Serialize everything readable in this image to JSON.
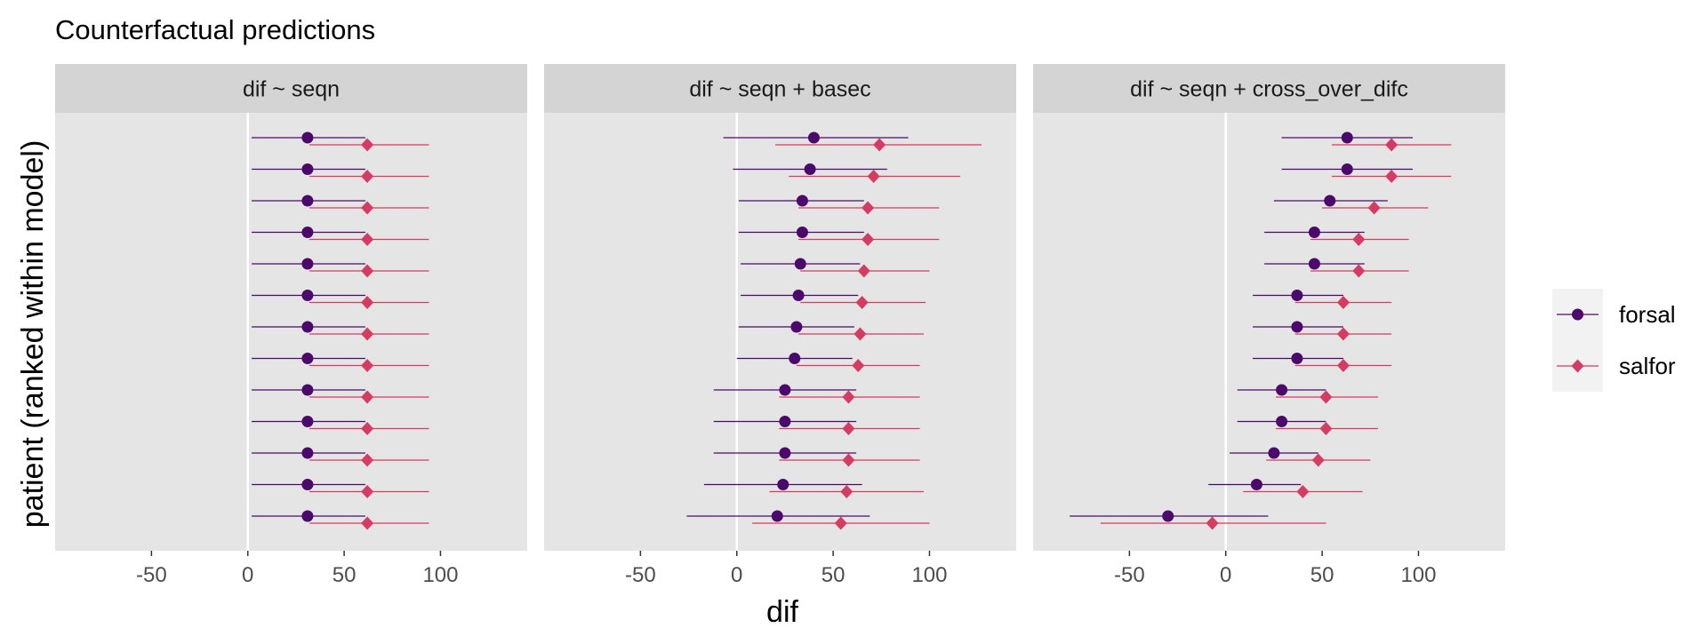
{
  "chart_data": {
    "type": "scatter",
    "title": "Counterfactual predictions",
    "xlabel": "dif",
    "ylabel": "patient (ranked within model)",
    "xlim": [
      -100,
      145
    ],
    "xticks": [
      -50,
      0,
      50,
      100
    ],
    "grid": false,
    "legend_position": "right",
    "colors": {
      "forsal": "#4B0A6B",
      "salfor": "#D63B61",
      "panel_bg": "#E5E5E5",
      "strip_bg": "#D4D4D4",
      "zero_line": "#FFFFFF"
    },
    "series": [
      {
        "name": "forsal",
        "marker": "circle"
      },
      {
        "name": "salfor",
        "marker": "diamond"
      }
    ],
    "panels": [
      {
        "label": "dif ~ seqn",
        "rows": [
          {
            "forsal": [
              31,
              2,
              61
            ],
            "salfor": [
              62,
              32,
              94
            ]
          },
          {
            "forsal": [
              31,
              2,
              61
            ],
            "salfor": [
              62,
              32,
              94
            ]
          },
          {
            "forsal": [
              31,
              2,
              61
            ],
            "salfor": [
              62,
              32,
              94
            ]
          },
          {
            "forsal": [
              31,
              2,
              61
            ],
            "salfor": [
              62,
              32,
              94
            ]
          },
          {
            "forsal": [
              31,
              2,
              61
            ],
            "salfor": [
              62,
              32,
              94
            ]
          },
          {
            "forsal": [
              31,
              2,
              61
            ],
            "salfor": [
              62,
              32,
              94
            ]
          },
          {
            "forsal": [
              31,
              2,
              61
            ],
            "salfor": [
              62,
              32,
              94
            ]
          },
          {
            "forsal": [
              31,
              2,
              61
            ],
            "salfor": [
              62,
              32,
              94
            ]
          },
          {
            "forsal": [
              31,
              2,
              61
            ],
            "salfor": [
              62,
              32,
              94
            ]
          },
          {
            "forsal": [
              31,
              2,
              61
            ],
            "salfor": [
              62,
              32,
              94
            ]
          },
          {
            "forsal": [
              31,
              2,
              61
            ],
            "salfor": [
              62,
              32,
              94
            ]
          },
          {
            "forsal": [
              31,
              2,
              61
            ],
            "salfor": [
              62,
              32,
              94
            ]
          },
          {
            "forsal": [
              31,
              2,
              61
            ],
            "salfor": [
              62,
              32,
              94
            ]
          }
        ]
      },
      {
        "label": "dif ~ seqn + basec",
        "rows": [
          {
            "forsal": [
              40,
              -7,
              89
            ],
            "salfor": [
              74,
              20,
              127
            ]
          },
          {
            "forsal": [
              38,
              -2,
              78
            ],
            "salfor": [
              71,
              27,
              116
            ]
          },
          {
            "forsal": [
              34,
              1,
              66
            ],
            "salfor": [
              68,
              32,
              105
            ]
          },
          {
            "forsal": [
              34,
              1,
              66
            ],
            "salfor": [
              68,
              32,
              105
            ]
          },
          {
            "forsal": [
              33,
              2,
              64
            ],
            "salfor": [
              66,
              33,
              100
            ]
          },
          {
            "forsal": [
              32,
              2,
              63
            ],
            "salfor": [
              65,
              33,
              98
            ]
          },
          {
            "forsal": [
              31,
              1,
              61
            ],
            "salfor": [
              64,
              32,
              97
            ]
          },
          {
            "forsal": [
              30,
              0,
              60
            ],
            "salfor": [
              63,
              31,
              95
            ]
          },
          {
            "forsal": [
              25,
              -12,
              62
            ],
            "salfor": [
              58,
              22,
              95
            ]
          },
          {
            "forsal": [
              25,
              -12,
              62
            ],
            "salfor": [
              58,
              22,
              95
            ]
          },
          {
            "forsal": [
              25,
              -12,
              62
            ],
            "salfor": [
              58,
              22,
              95
            ]
          },
          {
            "forsal": [
              24,
              -17,
              65
            ],
            "salfor": [
              57,
              17,
              97
            ]
          },
          {
            "forsal": [
              21,
              -26,
              69
            ],
            "salfor": [
              54,
              8,
              100
            ]
          }
        ]
      },
      {
        "label": "dif ~ seqn + cross_over_difc",
        "rows": [
          {
            "forsal": [
              63,
              29,
              97
            ],
            "salfor": [
              86,
              55,
              117
            ]
          },
          {
            "forsal": [
              63,
              29,
              97
            ],
            "salfor": [
              86,
              55,
              117
            ]
          },
          {
            "forsal": [
              54,
              25,
              84
            ],
            "salfor": [
              77,
              50,
              105
            ]
          },
          {
            "forsal": [
              46,
              20,
              72
            ],
            "salfor": [
              69,
              44,
              95
            ]
          },
          {
            "forsal": [
              46,
              20,
              72
            ],
            "salfor": [
              69,
              44,
              95
            ]
          },
          {
            "forsal": [
              37,
              14,
              61
            ],
            "salfor": [
              61,
              36,
              86
            ]
          },
          {
            "forsal": [
              37,
              14,
              61
            ],
            "salfor": [
              61,
              36,
              86
            ]
          },
          {
            "forsal": [
              37,
              14,
              61
            ],
            "salfor": [
              61,
              36,
              86
            ]
          },
          {
            "forsal": [
              29,
              6,
              52
            ],
            "salfor": [
              52,
              26,
              79
            ]
          },
          {
            "forsal": [
              29,
              6,
              52
            ],
            "salfor": [
              52,
              26,
              79
            ]
          },
          {
            "forsal": [
              25,
              2,
              48
            ],
            "salfor": [
              48,
              21,
              75
            ]
          },
          {
            "forsal": [
              16,
              -9,
              39
            ],
            "salfor": [
              40,
              9,
              71
            ]
          },
          {
            "forsal": [
              -30,
              -81,
              22
            ],
            "salfor": [
              -7,
              -65,
              52
            ]
          }
        ]
      }
    ]
  }
}
